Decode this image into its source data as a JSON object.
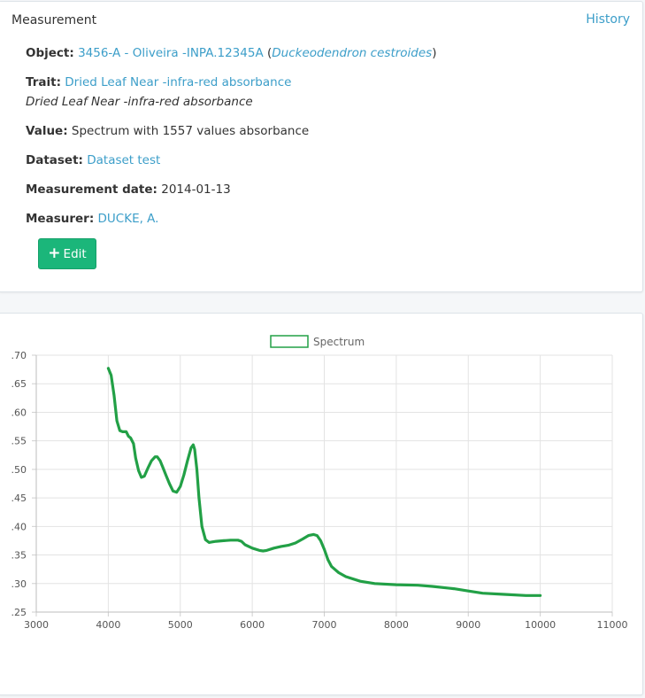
{
  "panel": {
    "title": "Measurement",
    "history_label": "History"
  },
  "fields": {
    "object_label": "Object:",
    "object_link": "3456-A - Oliveira -INPA.12345A",
    "object_open": "(",
    "object_taxon": "Duckeodendron cestroides",
    "object_close": ")",
    "trait_label": "Trait:",
    "trait_link": "Dried Leaf Near -infra-red absorbance",
    "trait_description": "Dried Leaf Near -infra-red absorbance",
    "value_label": "Value:",
    "value_text": "Spectrum with 1557 values absorbance",
    "dataset_label": "Dataset:",
    "dataset_link": "Dataset test",
    "date_label": "Measurement date:",
    "date_value": "2014-01-13",
    "measurer_label": "Measurer:",
    "measurer_link": "DUCKE, A."
  },
  "edit_button": {
    "icon": "plus-icon",
    "label": "Edit"
  },
  "colors": {
    "link": "#3c9ec9",
    "button": "#1bb67a",
    "series": "#22a046"
  },
  "chart_data": {
    "type": "line",
    "title": "",
    "xlabel": "",
    "ylabel": "",
    "legend": {
      "position": "top-center",
      "entries": [
        "Spectrum"
      ]
    },
    "grid": true,
    "xlim": [
      3000,
      11000
    ],
    "ylim": [
      0.25,
      0.7
    ],
    "x_ticks": [
      3000,
      4000,
      5000,
      6000,
      7000,
      8000,
      9000,
      10000,
      11000
    ],
    "y_ticks": [
      {
        "v": 0.25,
        "label": ".25"
      },
      {
        "v": 0.3,
        "label": ".30"
      },
      {
        "v": 0.35,
        "label": ".35"
      },
      {
        "v": 0.4,
        "label": ".40"
      },
      {
        "v": 0.45,
        "label": ".45"
      },
      {
        "v": 0.5,
        "label": ".50"
      },
      {
        "v": 0.55,
        "label": ".55"
      },
      {
        "v": 0.6,
        "label": ".60"
      },
      {
        "v": 0.65,
        "label": ".65"
      },
      {
        "v": 0.7,
        "label": ".70"
      }
    ],
    "series": [
      {
        "name": "Spectrum",
        "x": [
          4000,
          4040,
          4080,
          4120,
          4160,
          4200,
          4250,
          4280,
          4310,
          4350,
          4380,
          4420,
          4460,
          4500,
          4550,
          4600,
          4650,
          4680,
          4720,
          4760,
          4800,
          4850,
          4900,
          4950,
          5000,
          5050,
          5100,
          5150,
          5180,
          5200,
          5230,
          5260,
          5300,
          5350,
          5400,
          5450,
          5500,
          5600,
          5700,
          5800,
          5850,
          5900,
          6000,
          6100,
          6150,
          6200,
          6300,
          6400,
          6500,
          6600,
          6700,
          6780,
          6850,
          6900,
          6950,
          7000,
          7050,
          7100,
          7200,
          7300,
          7500,
          7700,
          8000,
          8300,
          8500,
          8800,
          9000,
          9200,
          9500,
          9800,
          10000
        ],
        "y": [
          0.677,
          0.665,
          0.63,
          0.585,
          0.568,
          0.566,
          0.566,
          0.558,
          0.555,
          0.545,
          0.52,
          0.498,
          0.486,
          0.488,
          0.502,
          0.515,
          0.522,
          0.522,
          0.515,
          0.503,
          0.49,
          0.475,
          0.462,
          0.46,
          0.47,
          0.49,
          0.515,
          0.538,
          0.543,
          0.535,
          0.5,
          0.45,
          0.4,
          0.377,
          0.372,
          0.373,
          0.374,
          0.375,
          0.376,
          0.376,
          0.374,
          0.368,
          0.362,
          0.358,
          0.357,
          0.358,
          0.362,
          0.365,
          0.367,
          0.371,
          0.378,
          0.384,
          0.386,
          0.384,
          0.375,
          0.36,
          0.342,
          0.33,
          0.319,
          0.312,
          0.304,
          0.3,
          0.298,
          0.297,
          0.295,
          0.291,
          0.287,
          0.283,
          0.281,
          0.279,
          0.279
        ]
      }
    ]
  }
}
